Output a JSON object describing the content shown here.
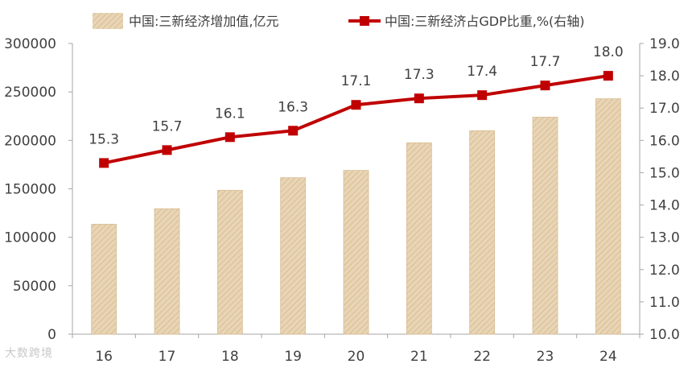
{
  "chart_data": {
    "type": "bar+line",
    "categories": [
      "16",
      "17",
      "18",
      "19",
      "20",
      "21",
      "22",
      "23",
      "24"
    ],
    "series": [
      {
        "name": "中国:三新经济增加值,亿元",
        "type": "bar",
        "axis": "left",
        "values": [
          113500,
          129500,
          148500,
          161500,
          169000,
          197500,
          210000,
          224000,
          243000
        ]
      },
      {
        "name": "中国:三新经济占GDP比重,%(右轴)",
        "type": "line",
        "axis": "right",
        "values": [
          15.3,
          15.7,
          16.1,
          16.3,
          17.1,
          17.3,
          17.4,
          17.7,
          18.0
        ],
        "labels": [
          "15.3",
          "15.7",
          "16.1",
          "16.3",
          "17.1",
          "17.3",
          "17.4",
          "17.7",
          "18.0"
        ]
      }
    ],
    "y_left": {
      "min": 0,
      "max": 300000,
      "ticks": [
        "0",
        "50000",
        "100000",
        "150000",
        "200000",
        "250000",
        "300000"
      ]
    },
    "y_right": {
      "min": 10.0,
      "max": 19.0,
      "ticks": [
        "10.0",
        "11.0",
        "12.0",
        "13.0",
        "14.0",
        "15.0",
        "16.0",
        "17.0",
        "18.0",
        "19.0"
      ]
    },
    "legend_position": "top",
    "grid": false,
    "colors": {
      "bar_fill": "#e8d5b5",
      "bar_hatch": "#d9bd94",
      "line": "#c00000",
      "axis": "#a6a6a6",
      "text": "#404040"
    }
  },
  "watermark": "大数跨境"
}
